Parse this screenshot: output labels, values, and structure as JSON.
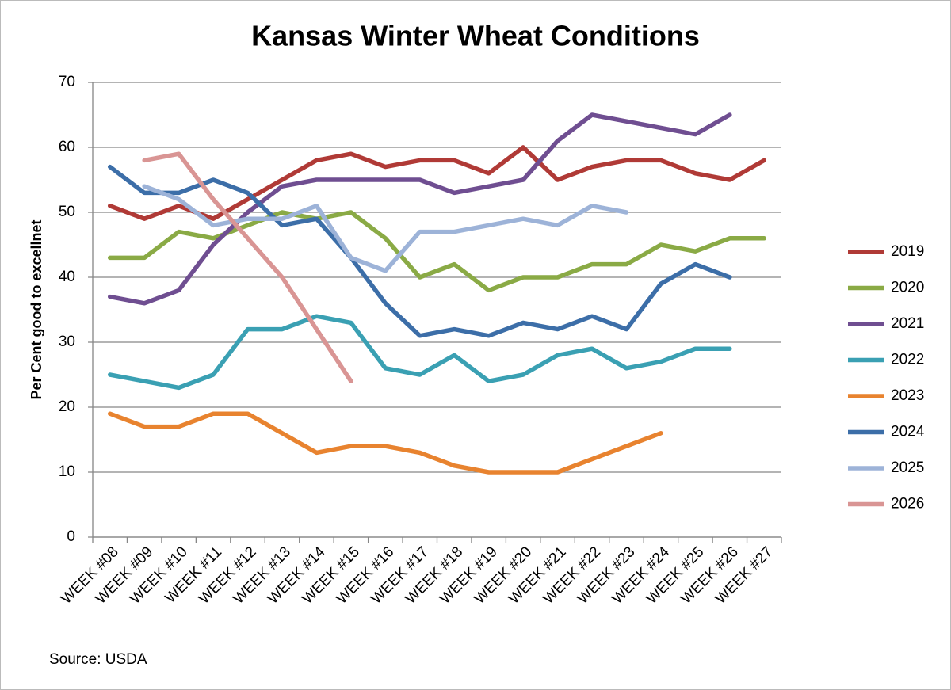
{
  "chart_data": {
    "type": "line",
    "title": "Kansas Winter Wheat Conditions",
    "y_label": "Per Cent good to excellnet",
    "source": "Source: USDA",
    "categories": [
      "WEEK #08",
      "WEEK #09",
      "WEEK #10",
      "WEEK #11",
      "WEEK #12",
      "WEEK #13",
      "WEEK #14",
      "WEEK #15",
      "WEEK #16",
      "WEEK #17",
      "WEEK #18",
      "WEEK #19",
      "WEEK #20",
      "WEEK #21",
      "WEEK #22",
      "WEEK #23",
      "WEEK #24",
      "WEEK #25",
      "WEEK #26",
      "WEEK #27"
    ],
    "series": [
      {
        "name": "2019",
        "color": "#b03a36",
        "values": [
          51,
          49,
          51,
          49,
          52,
          55,
          58,
          59,
          57,
          58,
          58,
          56,
          60,
          55,
          57,
          58,
          58,
          56,
          55,
          58
        ]
      },
      {
        "name": "2020",
        "color": "#8aaa45",
        "values": [
          43,
          43,
          47,
          46,
          48,
          50,
          49,
          50,
          46,
          40,
          42,
          38,
          40,
          40,
          42,
          42,
          45,
          44,
          46,
          46
        ]
      },
      {
        "name": "2021",
        "color": "#6f4e91",
        "values": [
          37,
          36,
          38,
          45,
          50,
          54,
          55,
          55,
          55,
          55,
          53,
          54,
          55,
          61,
          65,
          64,
          63,
          62,
          65,
          null
        ]
      },
      {
        "name": "2022",
        "color": "#3aa0b3",
        "values": [
          25,
          24,
          23,
          25,
          32,
          32,
          34,
          33,
          26,
          25,
          28,
          24,
          25,
          28,
          29,
          26,
          27,
          29,
          29,
          null
        ]
      },
      {
        "name": "2023",
        "color": "#e8832f",
        "values": [
          19,
          17,
          17,
          19,
          19,
          16,
          13,
          14,
          14,
          13,
          11,
          10,
          10,
          10,
          12,
          14,
          16,
          null,
          null,
          null
        ]
      },
      {
        "name": "2024",
        "color": "#3c6ea8",
        "values": [
          57,
          53,
          53,
          55,
          53,
          48,
          49,
          43,
          36,
          31,
          32,
          31,
          33,
          32,
          34,
          32,
          39,
          42,
          40,
          null
        ]
      },
      {
        "name": "2025",
        "color": "#9db3d8",
        "values": [
          null,
          54,
          52,
          48,
          49,
          49,
          51,
          43,
          41,
          47,
          47,
          48,
          49,
          48,
          51,
          50,
          null,
          null,
          null,
          null
        ]
      },
      {
        "name": "2026",
        "color": "#d99594",
        "values": [
          null,
          58,
          59,
          52,
          46,
          40,
          32,
          24,
          null,
          null,
          null,
          null,
          null,
          null,
          null,
          null,
          null,
          null,
          null,
          null
        ]
      }
    ],
    "ylim": [
      0,
      70
    ],
    "yticks": [
      0,
      10,
      20,
      30,
      40,
      50,
      60,
      70
    ],
    "grid": true,
    "legend": "right"
  }
}
